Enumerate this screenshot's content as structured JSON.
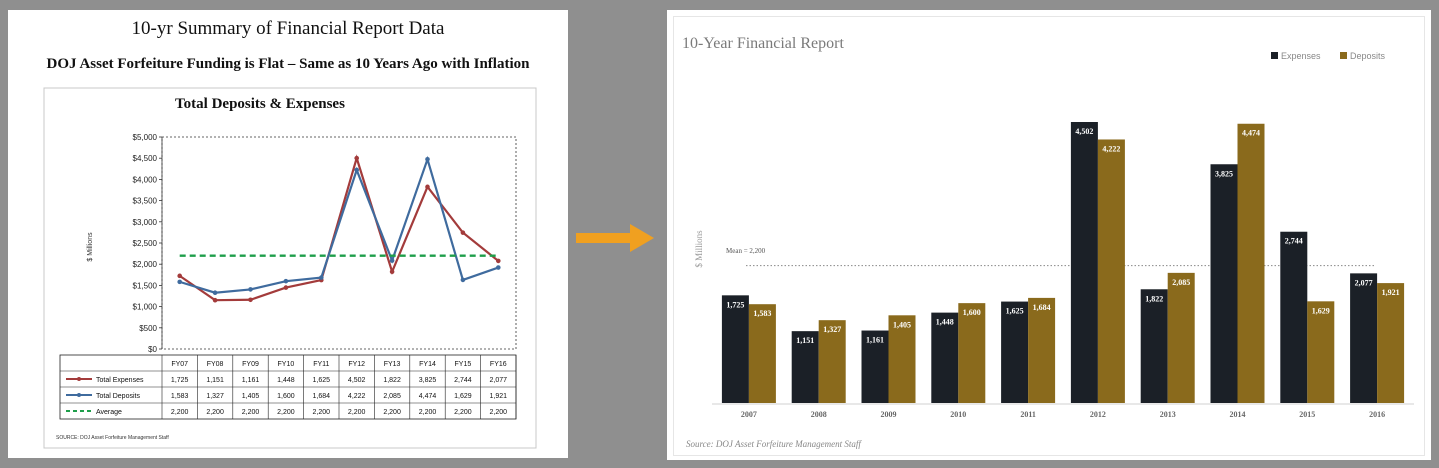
{
  "left": {
    "heading": "10-yr Summary of Financial Report Data",
    "subheading": "DOJ Asset Forfeiture Funding is Flat – Same as 10 Years Ago with Inflation",
    "source": "SOURCE: DOJ Asset Forfeiture Management Staff"
  },
  "right": {
    "source": "Source: DOJ Asset Forfeiture Management Staff",
    "mean_label": "Mean = 2,200"
  },
  "colors": {
    "expenses_line": "#a33b3b",
    "deposits_line": "#3f6b9e",
    "average_line": "#1e9e4a",
    "expenses_bar": "#1b2027",
    "deposits_bar": "#8a6a1c",
    "arrow": "#f0a020"
  },
  "arrow_icon": "right-arrow-icon",
  "chart_data": [
    {
      "type": "line",
      "title": "Total Deposits & Expenses",
      "ylabel": "$ Millions",
      "ylim": [
        0,
        5000
      ],
      "yticks": [
        "$0",
        "$500",
        "$1,000",
        "$1,500",
        "$2,000",
        "$2,500",
        "$3,000",
        "$3,500",
        "$4,000",
        "$4,500",
        "$5,000"
      ],
      "categories": [
        "FY07",
        "FY08",
        "FY09",
        "FY10",
        "FY11",
        "FY12",
        "FY13",
        "FY14",
        "FY15",
        "FY16"
      ],
      "series": [
        {
          "name": "Total Expenses",
          "values": [
            1725,
            1151,
            1161,
            1448,
            1625,
            4502,
            1822,
            3825,
            2744,
            2077
          ],
          "labels": [
            "1,725",
            "1,151",
            "1,161",
            "1,448",
            "1,625",
            "4,502",
            "1,822",
            "3,825",
            "2,744",
            "2,077"
          ]
        },
        {
          "name": "Total Deposits",
          "values": [
            1583,
            1327,
            1405,
            1600,
            1684,
            4222,
            2085,
            4474,
            1629,
            1921
          ],
          "labels": [
            "1,583",
            "1,327",
            "1,405",
            "1,600",
            "1,684",
            "4,222",
            "2,085",
            "4,474",
            "1,629",
            "1,921"
          ]
        },
        {
          "name": "Average",
          "values": [
            2200,
            2200,
            2200,
            2200,
            2200,
            2200,
            2200,
            2200,
            2200,
            2200
          ],
          "labels": [
            "2,200",
            "2,200",
            "2,200",
            "2,200",
            "2,200",
            "2,200",
            "2,200",
            "2,200",
            "2,200",
            "2,200"
          ]
        }
      ],
      "grid": false,
      "legend": "data-table"
    },
    {
      "type": "bar",
      "title": "10-Year Financial Report",
      "ylabel": "$ Millions",
      "ylim": [
        0,
        5000
      ],
      "categories": [
        "2007",
        "2008",
        "2009",
        "2010",
        "2011",
        "2012",
        "2013",
        "2014",
        "2015",
        "2016"
      ],
      "series": [
        {
          "name": "Expenses",
          "values": [
            1725,
            1151,
            1161,
            1448,
            1625,
            4502,
            1822,
            3825,
            2744,
            2077
          ],
          "labels": [
            "1,725",
            "1,151",
            "1,161",
            "1,448",
            "1,625",
            "4,502",
            "1,822",
            "3,825",
            "2,744",
            "2,077"
          ]
        },
        {
          "name": "Deposits",
          "values": [
            1583,
            1327,
            1405,
            1600,
            1684,
            4222,
            2085,
            4474,
            1629,
            1921
          ],
          "labels": [
            "1,583",
            "1,327",
            "1,405",
            "1,600",
            "1,684",
            "4,222",
            "2,085",
            "4,474",
            "1,629",
            "1,921"
          ]
        }
      ],
      "mean": 2200,
      "grid": false,
      "legend": "top-right"
    }
  ]
}
